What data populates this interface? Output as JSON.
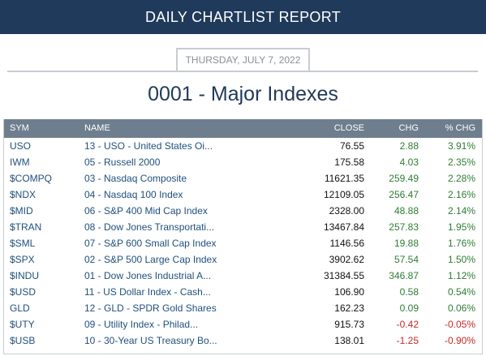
{
  "header": {
    "title": "DAILY CHARTLIST REPORT"
  },
  "date": "THURSDAY, JULY 7, 2022",
  "list_title": "0001 - Major Indexes",
  "columns": {
    "sym": "SYM",
    "name": "NAME",
    "close": "CLOSE",
    "chg": "CHG",
    "pct": "% CHG"
  },
  "colors": {
    "header_bg": "#1f3a5a",
    "table_head_bg": "#6f7e8e",
    "positive": "#2e7d32",
    "negative": "#c62828",
    "link": "#1f4f7f"
  },
  "rows": [
    {
      "sym": "USO",
      "name": "13 - USO - United States Oi...",
      "close": "76.55",
      "chg": "2.88",
      "pct": "3.91%",
      "dir": "pos"
    },
    {
      "sym": "IWM",
      "name": "05 - Russell 2000",
      "close": "175.58",
      "chg": "4.03",
      "pct": "2.35%",
      "dir": "pos"
    },
    {
      "sym": "$COMPQ",
      "name": "03 - Nasdaq Composite",
      "close": "11621.35",
      "chg": "259.49",
      "pct": "2.28%",
      "dir": "pos"
    },
    {
      "sym": "$NDX",
      "name": "04 - Nasdaq 100 Index",
      "close": "12109.05",
      "chg": "256.47",
      "pct": "2.16%",
      "dir": "pos"
    },
    {
      "sym": "$MID",
      "name": "06 - S&P 400 Mid Cap Index",
      "close": "2328.00",
      "chg": "48.88",
      "pct": "2.14%",
      "dir": "pos"
    },
    {
      "sym": "$TRAN",
      "name": "08 - Dow Jones Transportati...",
      "close": "13467.84",
      "chg": "257.83",
      "pct": "1.95%",
      "dir": "pos"
    },
    {
      "sym": "$SML",
      "name": "07 - S&P 600 Small Cap Index",
      "close": "1146.56",
      "chg": "19.88",
      "pct": "1.76%",
      "dir": "pos"
    },
    {
      "sym": "$SPX",
      "name": "02 - S&P 500 Large Cap Index",
      "close": "3902.62",
      "chg": "57.54",
      "pct": "1.50%",
      "dir": "pos"
    },
    {
      "sym": "$INDU",
      "name": "01 - Dow Jones Industrial A...",
      "close": "31384.55",
      "chg": "346.87",
      "pct": "1.12%",
      "dir": "pos"
    },
    {
      "sym": "$USD",
      "name": "11 - US Dollar Index - Cash...",
      "close": "106.90",
      "chg": "0.58",
      "pct": "0.54%",
      "dir": "pos"
    },
    {
      "sym": "GLD",
      "name": "12 - GLD - SPDR Gold Shares",
      "close": "162.23",
      "chg": "0.09",
      "pct": "0.06%",
      "dir": "pos"
    },
    {
      "sym": "$UTY",
      "name": "09 - Utility Index - Philad...",
      "close": "915.73",
      "chg": "-0.42",
      "pct": "-0.05%",
      "dir": "neg"
    },
    {
      "sym": "$USB",
      "name": "10 - 30-Year US Treasury Bo...",
      "close": "138.01",
      "chg": "-1.25",
      "pct": "-0.90%",
      "dir": "neg"
    }
  ]
}
